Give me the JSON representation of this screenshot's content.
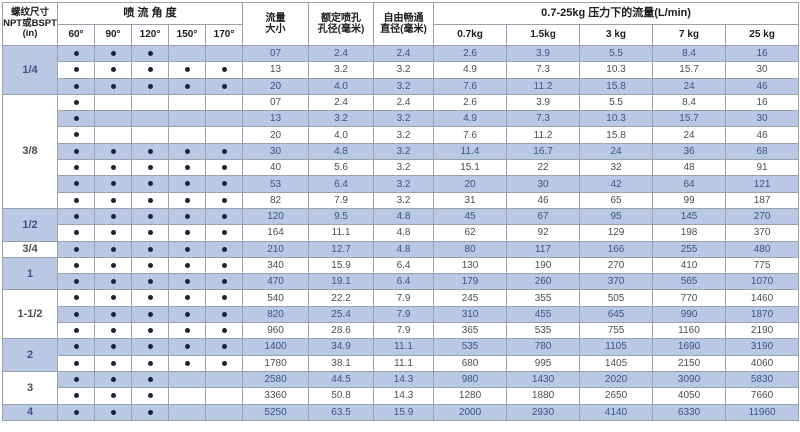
{
  "colors": {
    "row_highlight_blue": "#b9c9e4",
    "row_white": "#ffffff",
    "grid_border": "#9aa2ad",
    "header_text": "#1c1c1c",
    "value_text_on_blue": "#3a5488",
    "value_text_on_white": "#4d4d4d",
    "dot": "#1c2335"
  },
  "chart_data": {
    "type": "table",
    "title": "0.7-25kg 压力下的流量(L/min)",
    "header": {
      "thread_lines": [
        "螺纹尺寸",
        "NPT或BSPT",
        "(in)"
      ],
      "angle_group_label": "喷 流 角 度",
      "angle_labels": [
        "60°",
        "90°",
        "120°",
        "150°",
        "170°"
      ],
      "flow_lines": [
        "流量",
        "大小"
      ],
      "orifice_lines": [
        "额定喷孔",
        "孔径(毫米)"
      ],
      "free_passage_lines": [
        "自由畅通",
        "直径(毫米)"
      ],
      "pressure_group_label": "0.7-25kg 压力下的流量(L/min)",
      "pressure_labels": [
        "0.7kg",
        "1.5kg",
        "3 kg",
        "7 kg",
        "25 kg"
      ]
    },
    "groups": [
      {
        "thread_size": "1/4",
        "rows": [
          {
            "angles": [
              1,
              1,
              1,
              0,
              0
            ],
            "flow": "07",
            "orifice_mm": "2.4",
            "free_passage_mm": "2.4",
            "flows_lmin": [
              "2.6",
              "3.9",
              "5.5",
              "8.4",
              "16"
            ]
          },
          {
            "angles": [
              1,
              1,
              1,
              1,
              1
            ],
            "flow": "13",
            "orifice_mm": "3.2",
            "free_passage_mm": "3.2",
            "flows_lmin": [
              "4.9",
              "7.3",
              "10.3",
              "15.7",
              "30"
            ]
          },
          {
            "angles": [
              1,
              1,
              1,
              1,
              1
            ],
            "flow": "20",
            "orifice_mm": "4.0",
            "free_passage_mm": "3.2",
            "flows_lmin": [
              "7.6",
              "11.2",
              "15.8",
              "24",
              "46"
            ]
          }
        ]
      },
      {
        "thread_size": "3/8",
        "rows": [
          {
            "angles": [
              1,
              0,
              0,
              0,
              0
            ],
            "flow": "07",
            "orifice_mm": "2.4",
            "free_passage_mm": "2.4",
            "flows_lmin": [
              "2.6",
              "3.9",
              "5.5",
              "8.4",
              "16"
            ]
          },
          {
            "angles": [
              1,
              0,
              0,
              0,
              0
            ],
            "flow": "13",
            "orifice_mm": "3.2",
            "free_passage_mm": "3.2",
            "flows_lmin": [
              "4.9",
              "7.3",
              "10.3",
              "15.7",
              "30"
            ]
          },
          {
            "angles": [
              1,
              0,
              0,
              0,
              0
            ],
            "flow": "20",
            "orifice_mm": "4.0",
            "free_passage_mm": "3.2",
            "flows_lmin": [
              "7.6",
              "11.2",
              "15.8",
              "24",
              "46"
            ]
          },
          {
            "angles": [
              1,
              1,
              1,
              1,
              1
            ],
            "flow": "30",
            "orifice_mm": "4.8",
            "free_passage_mm": "3.2",
            "flows_lmin": [
              "11.4",
              "16.7",
              "24",
              "36",
              "68"
            ]
          },
          {
            "angles": [
              1,
              1,
              1,
              1,
              1
            ],
            "flow": "40",
            "orifice_mm": "5.6",
            "free_passage_mm": "3.2",
            "flows_lmin": [
              "15.1",
              "22",
              "32",
              "48",
              "91"
            ]
          },
          {
            "angles": [
              1,
              1,
              1,
              1,
              1
            ],
            "flow": "53",
            "orifice_mm": "6.4",
            "free_passage_mm": "3.2",
            "flows_lmin": [
              "20",
              "30",
              "42",
              "64",
              "121"
            ]
          },
          {
            "angles": [
              1,
              1,
              1,
              1,
              1
            ],
            "flow": "82",
            "orifice_mm": "7.9",
            "free_passage_mm": "3.2",
            "flows_lmin": [
              "31",
              "46",
              "65",
              "99",
              "187"
            ]
          }
        ]
      },
      {
        "thread_size": "1/2",
        "rows": [
          {
            "angles": [
              1,
              1,
              1,
              1,
              1
            ],
            "flow": "120",
            "orifice_mm": "9.5",
            "free_passage_mm": "4.8",
            "flows_lmin": [
              "45",
              "67",
              "95",
              "145",
              "270"
            ]
          },
          {
            "angles": [
              1,
              1,
              1,
              1,
              1
            ],
            "flow": "164",
            "orifice_mm": "11.1",
            "free_passage_mm": "4.8",
            "flows_lmin": [
              "62",
              "92",
              "129",
              "198",
              "370"
            ]
          }
        ]
      },
      {
        "thread_size": "3/4",
        "rows": [
          {
            "angles": [
              1,
              1,
              1,
              1,
              1
            ],
            "flow": "210",
            "orifice_mm": "12.7",
            "free_passage_mm": "4.8",
            "flows_lmin": [
              "80",
              "117",
              "166",
              "255",
              "480"
            ]
          }
        ]
      },
      {
        "thread_size": "1",
        "rows": [
          {
            "angles": [
              1,
              1,
              1,
              1,
              1
            ],
            "flow": "340",
            "orifice_mm": "15.9",
            "free_passage_mm": "6.4",
            "flows_lmin": [
              "130",
              "190",
              "270",
              "410",
              "775"
            ]
          },
          {
            "angles": [
              1,
              1,
              1,
              1,
              1
            ],
            "flow": "470",
            "orifice_mm": "19.1",
            "free_passage_mm": "6.4",
            "flows_lmin": [
              "179",
              "260",
              "370",
              "565",
              "1070"
            ]
          }
        ]
      },
      {
        "thread_size": "1-1/2",
        "rows": [
          {
            "angles": [
              1,
              1,
              1,
              1,
              1
            ],
            "flow": "540",
            "orifice_mm": "22.2",
            "free_passage_mm": "7.9",
            "flows_lmin": [
              "245",
              "355",
              "505",
              "770",
              "1460"
            ]
          },
          {
            "angles": [
              1,
              1,
              1,
              1,
              1
            ],
            "flow": "820",
            "orifice_mm": "25.4",
            "free_passage_mm": "7.9",
            "flows_lmin": [
              "310",
              "455",
              "645",
              "990",
              "1870"
            ]
          },
          {
            "angles": [
              1,
              1,
              1,
              1,
              1
            ],
            "flow": "960",
            "orifice_mm": "28.6",
            "free_passage_mm": "7.9",
            "flows_lmin": [
              "365",
              "535",
              "755",
              "1160",
              "2190"
            ]
          }
        ]
      },
      {
        "thread_size": "2",
        "rows": [
          {
            "angles": [
              1,
              1,
              1,
              1,
              1
            ],
            "flow": "1400",
            "orifice_mm": "34.9",
            "free_passage_mm": "11.1",
            "flows_lmin": [
              "535",
              "780",
              "1105",
              "1690",
              "3190"
            ]
          },
          {
            "angles": [
              1,
              1,
              1,
              1,
              1
            ],
            "flow": "1780",
            "orifice_mm": "38.1",
            "free_passage_mm": "11.1",
            "flows_lmin": [
              "680",
              "995",
              "1405",
              "2150",
              "4060"
            ]
          }
        ]
      },
      {
        "thread_size": "3",
        "rows": [
          {
            "angles": [
              1,
              1,
              1,
              0,
              0
            ],
            "flow": "2580",
            "orifice_mm": "44.5",
            "free_passage_mm": "14.3",
            "flows_lmin": [
              "980",
              "1430",
              "2020",
              "3090",
              "5830"
            ]
          },
          {
            "angles": [
              1,
              1,
              1,
              0,
              0
            ],
            "flow": "3360",
            "orifice_mm": "50.8",
            "free_passage_mm": "14.3",
            "flows_lmin": [
              "1280",
              "1880",
              "2650",
              "4050",
              "7660"
            ]
          }
        ]
      },
      {
        "thread_size": "4",
        "rows": [
          {
            "angles": [
              1,
              1,
              1,
              0,
              0
            ],
            "flow": "5250",
            "orifice_mm": "63.5",
            "free_passage_mm": "15.9",
            "flows_lmin": [
              "2000",
              "2930",
              "4140",
              "6330",
              "11960"
            ]
          }
        ]
      }
    ]
  }
}
